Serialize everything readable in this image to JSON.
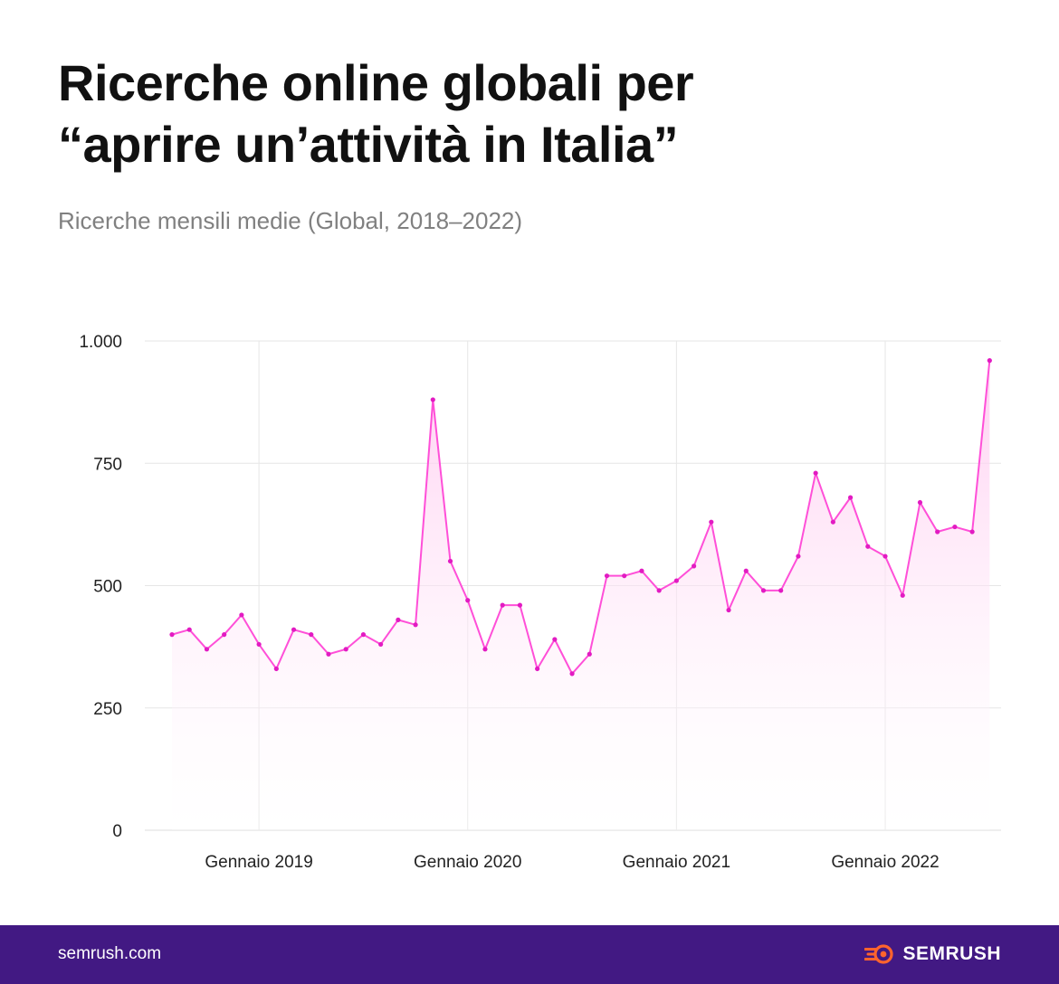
{
  "title_line1": "Ricerche online globali per",
  "title_line2": "“aprire un’attività in Italia”",
  "subtitle": "Ricerche mensili medie (Global, 2018–2022)",
  "footer": {
    "site": "semrush.com",
    "brand": "SEMRUSH",
    "brand_icon": "semrush-flame-icon",
    "background_color": "#421983"
  },
  "chart_data": {
    "type": "area",
    "title": "Ricerche online globali per “aprire un’attività in Italia”",
    "subtitle": "Ricerche mensili medie (Global, 2018–2022)",
    "series": [
      {
        "color": "#ff4fd8",
        "values": [
          400,
          410,
          370,
          400,
          440,
          380,
          330,
          410,
          400,
          360,
          370,
          400,
          380,
          430,
          420,
          880,
          550,
          470,
          370,
          460,
          460,
          330,
          390,
          320,
          360,
          520,
          520,
          530,
          490,
          510,
          540,
          630,
          450,
          530,
          490,
          490,
          560,
          730,
          630,
          680,
          580,
          560,
          480,
          670,
          610,
          620,
          610,
          960
        ]
      }
    ],
    "x_start": "Agosto 2018",
    "x_end": "Luglio 2022",
    "x_ticks": [
      {
        "index": 5,
        "label": "Gennaio 2019"
      },
      {
        "index": 17,
        "label": "Gennaio 2020"
      },
      {
        "index": 29,
        "label": "Gennaio 2021"
      },
      {
        "index": 41,
        "label": "Gennaio 2022"
      }
    ],
    "y_ticks": [
      {
        "value": 0,
        "label": "0"
      },
      {
        "value": 250,
        "label": "250"
      },
      {
        "value": 500,
        "label": "500"
      },
      {
        "value": 750,
        "label": "750"
      },
      {
        "value": 1000,
        "label": "1.000"
      }
    ],
    "ylim": [
      0,
      1000
    ],
    "grid": true,
    "legend": "none",
    "line_color": "#ff4fd8",
    "fill_color": "#ffd6f5"
  }
}
